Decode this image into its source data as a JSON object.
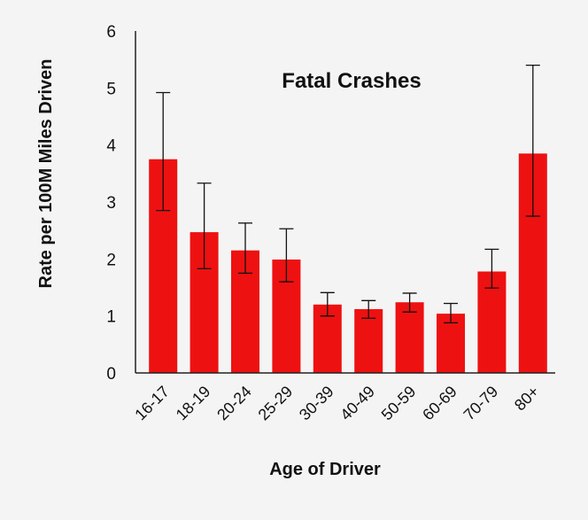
{
  "chart_data": {
    "type": "bar",
    "title": "Fatal Crashes",
    "xlabel": "Age of Driver",
    "ylabel": "Rate per 100M Miles Driven",
    "ylim": [
      0,
      6
    ],
    "yticks": [
      0,
      1,
      2,
      3,
      4,
      5,
      6
    ],
    "grid": false,
    "bar_color": "#ee1111",
    "categories": [
      "16-17",
      "18-19",
      "20-24",
      "25-29",
      "30-39",
      "40-49",
      "50-59",
      "60-69",
      "70-79",
      "80+"
    ],
    "values": [
      3.75,
      2.47,
      2.15,
      1.99,
      1.2,
      1.12,
      1.24,
      1.04,
      1.78,
      3.85
    ],
    "error_low": [
      2.85,
      1.83,
      1.75,
      1.6,
      1.0,
      0.96,
      1.07,
      0.88,
      1.49,
      2.75
    ],
    "error_high": [
      4.92,
      3.33,
      2.63,
      2.53,
      1.41,
      1.27,
      1.4,
      1.22,
      2.17,
      5.4
    ]
  }
}
